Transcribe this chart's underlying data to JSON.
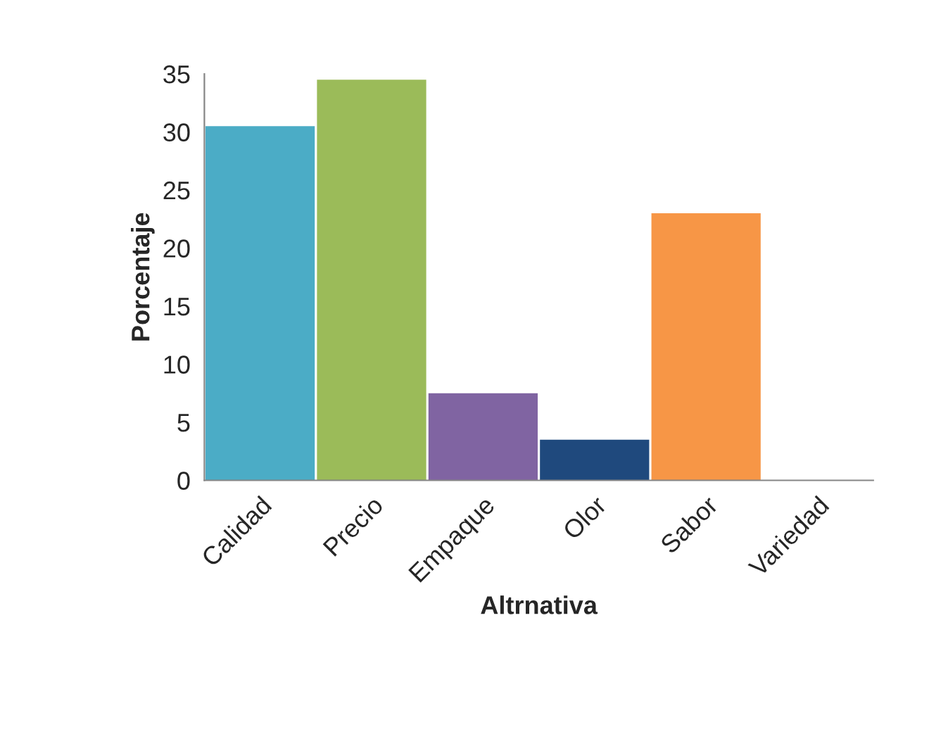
{
  "chart_data": {
    "type": "bar",
    "xlabel": "Altrnativa",
    "ylabel": "Porcentaje",
    "categories": [
      "Calidad",
      "Precio",
      "Empaque",
      "Olor",
      "Sabor",
      "Variedad"
    ],
    "values": [
      30.5,
      34.5,
      7.5,
      3.5,
      23,
      0
    ],
    "colors": [
      "#4bacc6",
      "#9bbb59",
      "#8064a2",
      "#1f497d",
      "#f79646",
      "#c0504d"
    ],
    "ylim": [
      0,
      35
    ],
    "yticks": [
      0,
      5,
      10,
      15,
      20,
      25,
      30,
      35
    ],
    "grid": false,
    "legend": false
  }
}
